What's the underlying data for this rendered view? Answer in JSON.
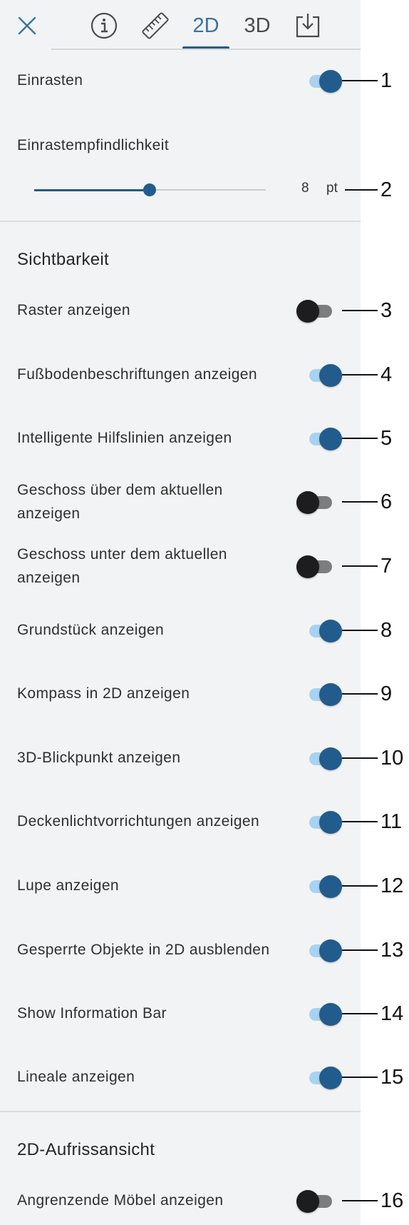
{
  "header": {
    "tabs": [
      {
        "id": "info",
        "icon": "info-icon",
        "label": ""
      },
      {
        "id": "measure",
        "icon": "ruler-icon",
        "label": ""
      },
      {
        "id": "2d",
        "label": "2D",
        "active": true
      },
      {
        "id": "3d",
        "label": "3D"
      },
      {
        "id": "export",
        "icon": "download-icon",
        "label": ""
      }
    ],
    "close_icon": "close-icon"
  },
  "snap": {
    "label": "Einrasten",
    "on": true,
    "callout": "1"
  },
  "sensitivity": {
    "label": "Einrastempfindlichkeit",
    "value": "8",
    "unit": "pt",
    "level": 0.5,
    "callout": "2"
  },
  "visibility": {
    "title": "Sichtbarkeit",
    "items": [
      {
        "label": "Raster anzeigen",
        "on": false,
        "callout": "3"
      },
      {
        "label": "Fußbodenbeschriftungen anzeigen",
        "on": true,
        "callout": "4"
      },
      {
        "label": "Intelligente Hilfslinien anzeigen",
        "on": true,
        "callout": "5"
      },
      {
        "label_line1": "Geschoss über dem aktuellen",
        "label_line2": "anzeigen",
        "on": false,
        "callout": "6"
      },
      {
        "label_line1": "Geschoss unter dem aktuellen",
        "label_line2": "anzeigen",
        "on": false,
        "callout": "7"
      },
      {
        "label": "Grundstück anzeigen",
        "on": true,
        "callout": "8"
      },
      {
        "label": "Kompass in 2D anzeigen",
        "on": true,
        "callout": "9"
      },
      {
        "label": "3D-Blickpunkt anzeigen",
        "on": true,
        "callout": "10"
      },
      {
        "label": "Deckenlichtvorrichtungen anzeigen",
        "on": true,
        "callout": "11"
      },
      {
        "label": "Lupe anzeigen",
        "on": true,
        "callout": "12"
      },
      {
        "label": "Gesperrte Objekte in 2D ausblenden",
        "on": true,
        "callout": "13"
      },
      {
        "label": "Show Information Bar",
        "on": true,
        "callout": "14"
      },
      {
        "label": "Lineale anzeigen",
        "on": true,
        "callout": "15"
      }
    ]
  },
  "elevation": {
    "title": "2D-Aufrissansicht",
    "items": [
      {
        "label": "Angrenzende Möbel anzeigen",
        "on": false,
        "callout": "16"
      }
    ]
  },
  "colors": {
    "accent": "#215c8c",
    "toggle_track_on": "#a9d2f0",
    "toggle_track_off": "#7d7d7d",
    "panel_bg": "#f2f3f4"
  }
}
